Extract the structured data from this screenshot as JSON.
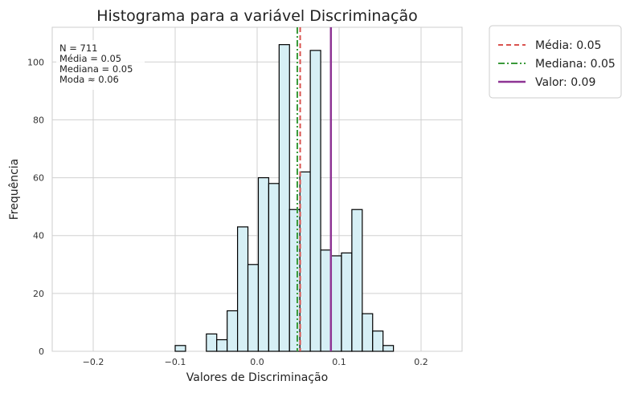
{
  "chart_data": {
    "type": "histogram",
    "title": "Histograma para a variável Discriminação",
    "xlabel": "Valores de Discriminação",
    "ylabel": "Frequência",
    "xlim": [
      -0.25,
      0.25
    ],
    "ylim": [
      0,
      112
    ],
    "x_ticks": [
      -0.2,
      -0.1,
      0.0,
      0.1,
      0.2
    ],
    "x_tick_labels": [
      "−0.2",
      "−0.1",
      "0.0",
      "0.1",
      "0.2"
    ],
    "y_ticks": [
      0,
      20,
      40,
      60,
      80,
      100
    ],
    "y_tick_labels": [
      "0",
      "20",
      "40",
      "60",
      "80",
      "100"
    ],
    "grid": true,
    "bin_start": -0.1,
    "bin_width": 0.01268,
    "counts": [
      2,
      0,
      0,
      6,
      4,
      14,
      43,
      30,
      60,
      58,
      106,
      49,
      62,
      104,
      35,
      33,
      34,
      49,
      13,
      7,
      2
    ],
    "bar_color": "#d6eff5",
    "bar_edge_color": "#000000",
    "reference_lines": [
      {
        "name": "Média: 0.05",
        "value": 0.0525,
        "color": "#d9534f",
        "style": "dashed"
      },
      {
        "name": "Mediana: 0.05",
        "value": 0.049,
        "color": "#3a9a3a",
        "style": "dashdot"
      },
      {
        "name": "Valor: 0.09",
        "value": 0.09,
        "color": "#8e3494",
        "style": "solid"
      }
    ],
    "stats_box": [
      "N = 711",
      "Média = 0.05",
      "Mediana = 0.05",
      "Moda ≈ 0.06"
    ],
    "legend_position": "outside-top-right"
  }
}
